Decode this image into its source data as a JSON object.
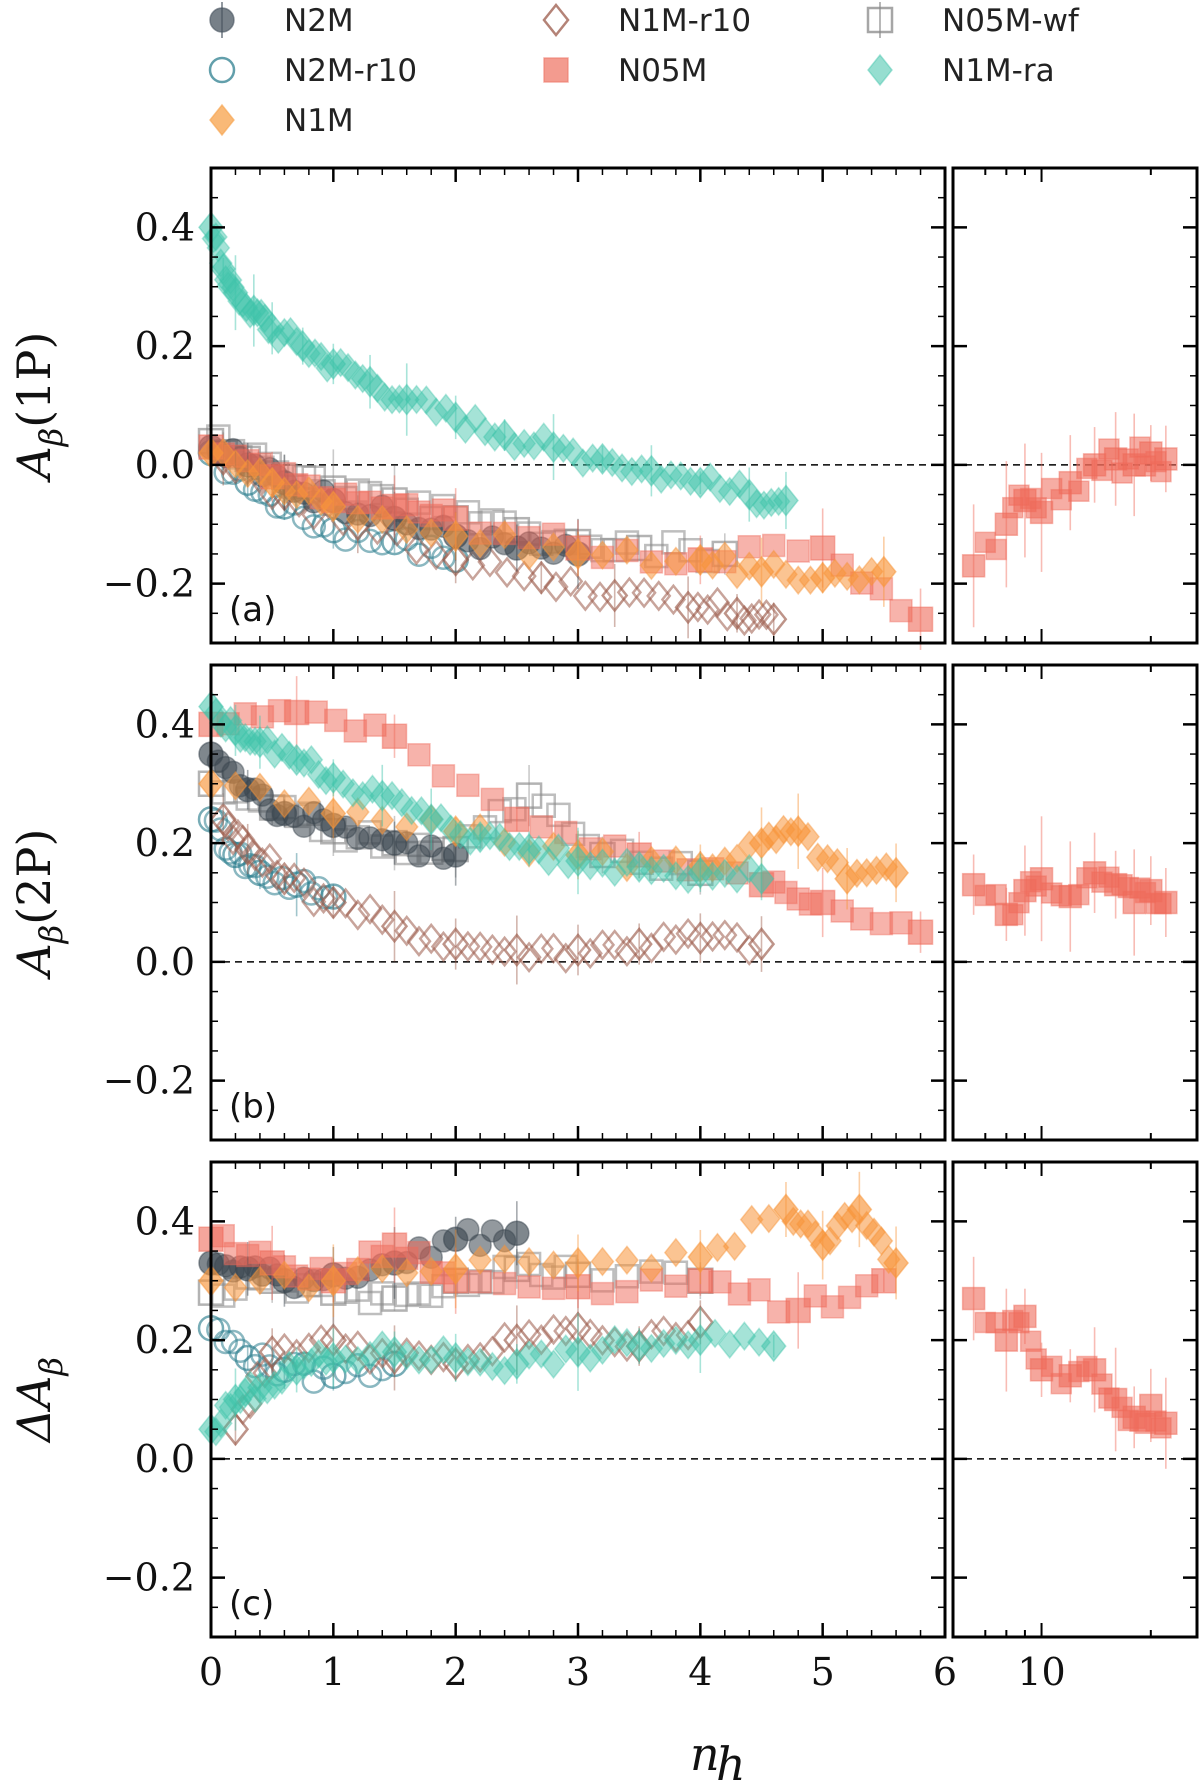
{
  "legend": [
    {
      "label": "N2M",
      "marker": "circle-filled",
      "color": "#4a5560"
    },
    {
      "label": "N2M-r10",
      "marker": "circle-open",
      "color": "#2e7f8f"
    },
    {
      "label": "N1M",
      "marker": "diamond-filled",
      "color": "#f7a14a"
    },
    {
      "label": "N1M-r10",
      "marker": "diamond-open",
      "color": "#9b5a4a"
    },
    {
      "label": "N05M",
      "marker": "square-filled",
      "color": "#ef7a6a"
    },
    {
      "label": "N05M-wf",
      "marker": "square-open",
      "color": "#888888"
    },
    {
      "label": "N1M-ra",
      "marker": "diamond-filled-light",
      "color": "#3fc3aa"
    }
  ],
  "colors": {
    "N2M": "#3b4650",
    "N2M-r10": "#2e7f8f",
    "N1M": "#f7953a",
    "N1M-r10": "#9b5a4a",
    "N05M": "#ef6a5a",
    "N05M-wf": "#8a8a8a",
    "N1M-ra": "#3fc3aa"
  },
  "xaxis": {
    "label_main": "n",
    "label_sub": "h",
    "ticks": [
      "0",
      "1",
      "2",
      "3",
      "4",
      "5",
      "6"
    ],
    "right_ticks": [
      "10"
    ]
  },
  "chart_data": [
    {
      "type": "scatter",
      "panel": "(a)",
      "ylabel_main": "A",
      "ylabel_sub": "β",
      "ylabel_arg": "(1P)",
      "xlim": [
        0,
        6
      ],
      "ylim": [
        -0.3,
        0.5
      ],
      "yticks": [
        "−0.2",
        "0.0",
        "0.2",
        "0.4"
      ],
      "series": [
        {
          "name": "N1M-ra",
          "x": [
            0.0,
            0.1,
            0.2,
            0.35,
            0.5,
            0.75,
            1.0,
            1.3,
            1.6,
            2.0,
            2.4,
            2.8,
            3.2,
            3.6,
            4.0,
            4.4,
            4.7
          ],
          "y": [
            0.4,
            0.33,
            0.29,
            0.26,
            0.23,
            0.2,
            0.17,
            0.14,
            0.11,
            0.08,
            0.05,
            0.03,
            0.01,
            -0.01,
            -0.03,
            -0.05,
            -0.06
          ]
        },
        {
          "name": "N2M",
          "x": [
            0.0,
            0.3,
            0.6,
            1.0,
            1.5,
            2.0,
            2.5,
            3.0
          ],
          "y": [
            0.03,
            0.0,
            -0.03,
            -0.06,
            -0.09,
            -0.12,
            -0.14,
            -0.15
          ]
        },
        {
          "name": "N2M-r10",
          "x": [
            0.0,
            0.3,
            0.6,
            1.0,
            1.5,
            2.0
          ],
          "y": [
            0.02,
            -0.03,
            -0.07,
            -0.11,
            -0.13,
            -0.16
          ]
        },
        {
          "name": "N1M",
          "x": [
            0.0,
            0.5,
            1.0,
            2.0,
            3.0,
            4.0,
            4.5,
            5.0,
            5.5
          ],
          "y": [
            0.02,
            -0.03,
            -0.07,
            -0.12,
            -0.15,
            -0.16,
            -0.18,
            -0.19,
            -0.18
          ]
        },
        {
          "name": "N1M-r10",
          "x": [
            0.1,
            0.6,
            1.2,
            2.0,
            2.7,
            3.3,
            3.9,
            4.3,
            4.6
          ],
          "y": [
            0.01,
            -0.05,
            -0.1,
            -0.16,
            -0.19,
            -0.22,
            -0.24,
            -0.25,
            -0.26
          ]
        },
        {
          "name": "N05M",
          "x": [
            0.0,
            0.5,
            1.0,
            1.5,
            2.0,
            3.0,
            4.0,
            5.0,
            5.8
          ],
          "y": [
            0.03,
            -0.02,
            -0.06,
            -0.07,
            -0.09,
            -0.14,
            -0.16,
            -0.14,
            -0.26
          ]
        },
        {
          "name": "N05M-wf",
          "x": [
            0.0,
            0.3,
            0.6,
            1.0,
            1.5,
            2.0,
            2.5,
            3.0,
            3.5,
            4.2
          ],
          "y": [
            0.04,
            0.01,
            -0.02,
            -0.04,
            -0.06,
            -0.09,
            -0.11,
            -0.13,
            -0.14,
            -0.15
          ]
        }
      ],
      "right_panel": {
        "name": "N05M",
        "x": [
          6.5,
          8,
          9,
          10,
          12,
          14,
          16,
          18,
          20,
          22
        ],
        "y": [
          -0.17,
          -0.1,
          -0.06,
          -0.08,
          -0.03,
          0.0,
          0.01,
          0.0,
          0.02,
          0.01
        ]
      }
    },
    {
      "type": "scatter",
      "panel": "(b)",
      "ylabel_main": "A",
      "ylabel_sub": "β",
      "ylabel_arg": "(2P)",
      "xlim": [
        0,
        6
      ],
      "ylim": [
        -0.3,
        0.5
      ],
      "yticks": [
        "−0.2",
        "0.0",
        "0.2",
        "0.4"
      ],
      "series": [
        {
          "name": "N1M-ra",
          "x": [
            0.0,
            0.2,
            0.4,
            0.7,
            1.0,
            1.4,
            1.8,
            2.2,
            2.6,
            3.0,
            3.5,
            4.0,
            4.5
          ],
          "y": [
            0.43,
            0.39,
            0.37,
            0.34,
            0.31,
            0.28,
            0.24,
            0.21,
            0.19,
            0.17,
            0.16,
            0.15,
            0.14
          ]
        },
        {
          "name": "N2M",
          "x": [
            0.0,
            0.3,
            0.6,
            1.0,
            1.5,
            2.0
          ],
          "y": [
            0.35,
            0.29,
            0.25,
            0.23,
            0.2,
            0.18
          ]
        },
        {
          "name": "N2M-r10",
          "x": [
            0.0,
            0.2,
            0.4,
            0.7,
            1.0
          ],
          "y": [
            0.24,
            0.18,
            0.15,
            0.13,
            0.11
          ]
        },
        {
          "name": "N1M",
          "x": [
            0.0,
            1.0,
            2.0,
            3.0,
            4.0,
            4.5,
            4.8,
            5.2,
            5.6
          ],
          "y": [
            0.3,
            0.25,
            0.22,
            0.18,
            0.16,
            0.2,
            0.22,
            0.14,
            0.15
          ]
        },
        {
          "name": "N1M-r10",
          "x": [
            0.1,
            0.3,
            0.6,
            1.0,
            1.5,
            2.0,
            2.5,
            3.0,
            3.5,
            4.0,
            4.5
          ],
          "y": [
            0.24,
            0.19,
            0.14,
            0.1,
            0.06,
            0.03,
            0.02,
            0.02,
            0.03,
            0.04,
            0.03
          ]
        },
        {
          "name": "N05M",
          "x": [
            0.0,
            0.7,
            1.5,
            2.5,
            3.5,
            4.5,
            5.0,
            5.8
          ],
          "y": [
            0.4,
            0.42,
            0.38,
            0.24,
            0.18,
            0.13,
            0.1,
            0.05
          ]
        },
        {
          "name": "N05M-wf",
          "x": [
            0.0,
            0.5,
            1.0,
            1.5,
            2.0,
            2.6,
            3.2,
            4.0
          ],
          "y": [
            0.3,
            0.26,
            0.22,
            0.2,
            0.19,
            0.28,
            0.18,
            0.15
          ]
        }
      ],
      "right_panel": {
        "name": "N05M",
        "x": [
          6.5,
          8,
          9,
          10,
          12,
          14,
          16,
          18,
          20,
          22
        ],
        "y": [
          0.13,
          0.08,
          0.12,
          0.14,
          0.11,
          0.15,
          0.13,
          0.1,
          0.12,
          0.1
        ]
      }
    },
    {
      "type": "scatter",
      "panel": "(c)",
      "ylabel_main": "ΔA",
      "ylabel_sub": "β",
      "ylabel_arg": "",
      "xlim": [
        0,
        6
      ],
      "ylim": [
        -0.3,
        0.5
      ],
      "yticks": [
        "−0.2",
        "0.0",
        "0.2",
        "0.4"
      ],
      "series": [
        {
          "name": "N1M-ra",
          "x": [
            0.0,
            0.2,
            0.4,
            0.7,
            1.0,
            1.5,
            2.0,
            2.5,
            3.0,
            3.5,
            4.0,
            4.6
          ],
          "y": [
            0.05,
            0.1,
            0.12,
            0.15,
            0.17,
            0.18,
            0.17,
            0.16,
            0.18,
            0.19,
            0.2,
            0.19
          ]
        },
        {
          "name": "N2M",
          "x": [
            0.0,
            0.3,
            0.6,
            1.0,
            1.5,
            2.0,
            2.5
          ],
          "y": [
            0.33,
            0.32,
            0.3,
            0.31,
            0.33,
            0.37,
            0.38
          ]
        },
        {
          "name": "N2M-r10",
          "x": [
            0.0,
            0.3,
            0.6,
            1.0,
            1.5
          ],
          "y": [
            0.22,
            0.17,
            0.15,
            0.14,
            0.16
          ]
        },
        {
          "name": "N1M",
          "x": [
            0.0,
            1.0,
            2.0,
            3.0,
            4.0,
            4.7,
            5.0,
            5.3,
            5.6
          ],
          "y": [
            0.3,
            0.3,
            0.32,
            0.33,
            0.34,
            0.42,
            0.36,
            0.42,
            0.33
          ]
        },
        {
          "name": "N1M-r10",
          "x": [
            0.2,
            0.5,
            1.0,
            1.5,
            2.0,
            2.5,
            3.0,
            3.5,
            4.0
          ],
          "y": [
            0.05,
            0.18,
            0.2,
            0.17,
            0.16,
            0.2,
            0.22,
            0.19,
            0.23
          ]
        },
        {
          "name": "N05M",
          "x": [
            0.0,
            0.5,
            1.0,
            1.5,
            2.0,
            3.0,
            4.0,
            4.8,
            5.5
          ],
          "y": [
            0.37,
            0.33,
            0.3,
            0.36,
            0.3,
            0.29,
            0.3,
            0.25,
            0.3
          ]
        },
        {
          "name": "N05M-wf",
          "x": [
            0.0,
            0.5,
            1.0,
            1.5,
            2.0,
            2.5,
            3.0,
            4.0
          ],
          "y": [
            0.28,
            0.3,
            0.28,
            0.27,
            0.3,
            0.32,
            0.31,
            0.3
          ]
        }
      ],
      "right_panel": {
        "name": "N05M",
        "x": [
          6.5,
          8,
          9,
          10,
          12,
          14,
          16,
          18,
          20,
          22
        ],
        "y": [
          0.27,
          0.2,
          0.24,
          0.15,
          0.14,
          0.15,
          0.1,
          0.07,
          0.09,
          0.06
        ]
      }
    }
  ]
}
